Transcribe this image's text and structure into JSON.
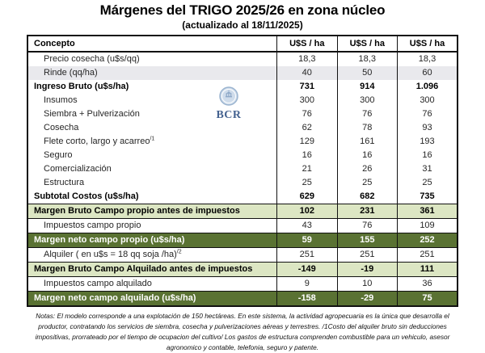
{
  "header": {
    "title": "Márgenes del TRIGO 2025/26 en zona núcleo",
    "subtitle": "(actualizado al 18/11/2025)"
  },
  "table": {
    "columns": [
      "Concepto",
      "U$S / ha",
      "U$S / ha",
      "U$S / ha"
    ],
    "rows": [
      {
        "label": "Precio cosecha (u$s/qq)",
        "values": [
          "18,3",
          "18,3",
          "18,3"
        ],
        "style": "indent"
      },
      {
        "label": "Rinde (qq/ha)",
        "values": [
          "40",
          "50",
          "60"
        ],
        "style": "indent gray"
      },
      {
        "label": "Ingreso Bruto (u$s/ha)",
        "values": [
          "731",
          "914",
          "1.096"
        ],
        "style": "bold"
      },
      {
        "label": "Insumos",
        "values": [
          "300",
          "300",
          "300"
        ],
        "style": "indent"
      },
      {
        "label": "Siembra + Pulverización",
        "values": [
          "76",
          "76",
          "76"
        ],
        "style": "indent"
      },
      {
        "label": "Cosecha",
        "values": [
          "62",
          "78",
          "93"
        ],
        "style": "indent"
      },
      {
        "label": "Flete corto, largo y acarreo",
        "sup": "/1",
        "values": [
          "129",
          "161",
          "193"
        ],
        "style": "indent"
      },
      {
        "label": "Seguro",
        "values": [
          "16",
          "16",
          "16"
        ],
        "style": "indent"
      },
      {
        "label": "Comercialización",
        "values": [
          "21",
          "26",
          "31"
        ],
        "style": "indent"
      },
      {
        "label": "Estructura",
        "values": [
          "25",
          "25",
          "25"
        ],
        "style": "indent"
      },
      {
        "label": "Subtotal Costos (u$s/ha)",
        "values": [
          "629",
          "682",
          "735"
        ],
        "style": "bold"
      },
      {
        "label": "Margen Bruto Campo propio antes de impuestos",
        "values": [
          "102",
          "231",
          "361"
        ],
        "style": "light"
      },
      {
        "label": "Impuestos  campo propio",
        "values": [
          "43",
          "76",
          "109"
        ],
        "style": "indent"
      },
      {
        "label": "Margen neto campo propio (u$s/ha)",
        "values": [
          "59",
          "155",
          "252"
        ],
        "style": "dark"
      },
      {
        "label": "Alquiler ( en u$s = 18 qq soja /ha)",
        "sup": "/2",
        "values": [
          "251",
          "251",
          "251"
        ],
        "style": "indent"
      },
      {
        "label": "Margen Bruto Campo Alquilado antes de impuestos",
        "values": [
          "-149",
          "-19",
          "111"
        ],
        "style": "light"
      },
      {
        "label": "Impuestos campo alquilado",
        "values": [
          "9",
          "10",
          "36"
        ],
        "style": "indent"
      },
      {
        "label": "Margen neto campo alquilado (u$s/ha)",
        "values": [
          "-158",
          "-29",
          "75"
        ],
        "style": "dark"
      }
    ]
  },
  "watermark": {
    "label": "BCR"
  },
  "notes": {
    "lines": [
      "Notas: El modelo corresponde a una explotación de 150 hectáreas. En este sistema, la actividad agropecuaria es la única que desarrolla el",
      "productor, contratando los servicios de siembra, cosecha y pulverizaciones aéreas y terrestres. /1Costo del alquiler bruto sin deducciones",
      "impositivas, prorrateado por el tiempo de ocupacion del cultivo/ Los gastos de estructura comprenden combustible para un vehiculo, asesor",
      "agronomico y contable, telefonia, seguro y patente."
    ]
  },
  "colors": {
    "dark_green_row": "#5a7233",
    "light_green_row": "#dce6c3",
    "gray_row": "#e9e9ed",
    "border": "#111111",
    "watermark_text_blue": "#24477d",
    "watermark_seal_blue": "#c7d7e8"
  }
}
